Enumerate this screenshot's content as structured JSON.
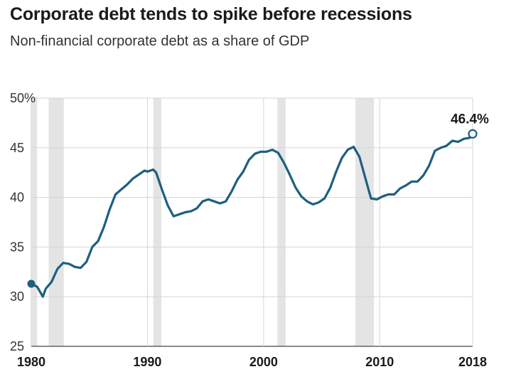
{
  "title": "Corporate debt tends to spike before recessions",
  "subtitle": "Non-financial corporate debt as a share of GDP",
  "colors": {
    "line": "#1d5f7f",
    "recession": "#e4e4e4",
    "grid": "#d5d5d5",
    "text": "#1a1a1a"
  },
  "chart_data": {
    "type": "line",
    "title": "Corporate debt tends to spike before recessions",
    "subtitle": "Non-financial corporate debt as a share of GDP",
    "xlabel": "",
    "ylabel": "",
    "xlim": [
      1980,
      2018
    ],
    "ylim": [
      25,
      50
    ],
    "x_ticks": [
      {
        "value": 1980,
        "label": "1980"
      },
      {
        "value": 1990,
        "label": "1990"
      },
      {
        "value": 2000,
        "label": "2000"
      },
      {
        "value": 2010,
        "label": "2010"
      },
      {
        "value": 2018,
        "label": "2018"
      }
    ],
    "y_ticks": [
      {
        "value": 50,
        "label": "50%"
      },
      {
        "value": 45,
        "label": "45"
      },
      {
        "value": 40,
        "label": "40"
      },
      {
        "value": 35,
        "label": "35"
      },
      {
        "value": 30,
        "label": "30"
      },
      {
        "value": 25,
        "label": "25"
      }
    ],
    "grid": true,
    "recessions": [
      {
        "start": 1980.0,
        "end": 1980.5
      },
      {
        "start": 1981.5,
        "end": 1982.8
      },
      {
        "start": 1990.5,
        "end": 1991.2
      },
      {
        "start": 2001.2,
        "end": 2001.9
      },
      {
        "start": 2007.9,
        "end": 2009.5
      }
    ],
    "series": [
      {
        "name": "Non-financial corporate debt (% of GDP)",
        "x": [
          1980.0,
          1980.5,
          1981.0,
          1981.25,
          1981.75,
          1982.25,
          1982.75,
          1983.25,
          1983.75,
          1984.25,
          1984.75,
          1985.25,
          1985.75,
          1986.25,
          1986.75,
          1987.25,
          1987.75,
          1988.25,
          1988.75,
          1989.25,
          1989.75,
          1990.0,
          1990.5,
          1990.75,
          1991.25,
          1991.75,
          1992.25,
          1992.75,
          1993.25,
          1993.75,
          1994.25,
          1994.75,
          1995.25,
          1995.75,
          1996.25,
          1996.75,
          1997.25,
          1997.75,
          1998.25,
          1998.75,
          1999.25,
          1999.75,
          2000.25,
          2000.75,
          2001.25,
          2001.75,
          2002.25,
          2002.75,
          2003.25,
          2003.75,
          2004.25,
          2004.75,
          2005.25,
          2005.75,
          2006.25,
          2006.75,
          2007.25,
          2007.75,
          2008.25,
          2008.75,
          2009.25,
          2009.75,
          2010.25,
          2010.75,
          2011.25,
          2011.75,
          2012.25,
          2012.75,
          2013.25,
          2013.75,
          2014.25,
          2014.75,
          2015.25,
          2015.75,
          2016.25,
          2016.75,
          2017.25,
          2017.75,
          2018.0
        ],
        "values": [
          31.3,
          31.0,
          30.0,
          30.8,
          31.5,
          32.8,
          33.4,
          33.3,
          33.0,
          32.9,
          33.5,
          35.0,
          35.6,
          37.0,
          38.8,
          40.3,
          40.8,
          41.3,
          41.9,
          42.3,
          42.7,
          42.6,
          42.8,
          42.5,
          40.8,
          39.2,
          38.1,
          38.3,
          38.5,
          38.6,
          38.9,
          39.6,
          39.8,
          39.6,
          39.4,
          39.6,
          40.6,
          41.8,
          42.6,
          43.8,
          44.4,
          44.6,
          44.6,
          44.8,
          44.5,
          43.5,
          42.3,
          41.0,
          40.1,
          39.6,
          39.3,
          39.5,
          39.9,
          41.0,
          42.6,
          44.0,
          44.8,
          45.1,
          44.1,
          42.0,
          39.9,
          39.8,
          40.1,
          40.3,
          40.3,
          40.9,
          41.2,
          41.6,
          41.6,
          42.2,
          43.2,
          44.7,
          45.0,
          45.2,
          45.7,
          45.6,
          45.9,
          46.0,
          46.4
        ]
      }
    ],
    "annotations": [
      {
        "x": 2018,
        "y": 46.4,
        "text": "46.4%"
      }
    ]
  }
}
